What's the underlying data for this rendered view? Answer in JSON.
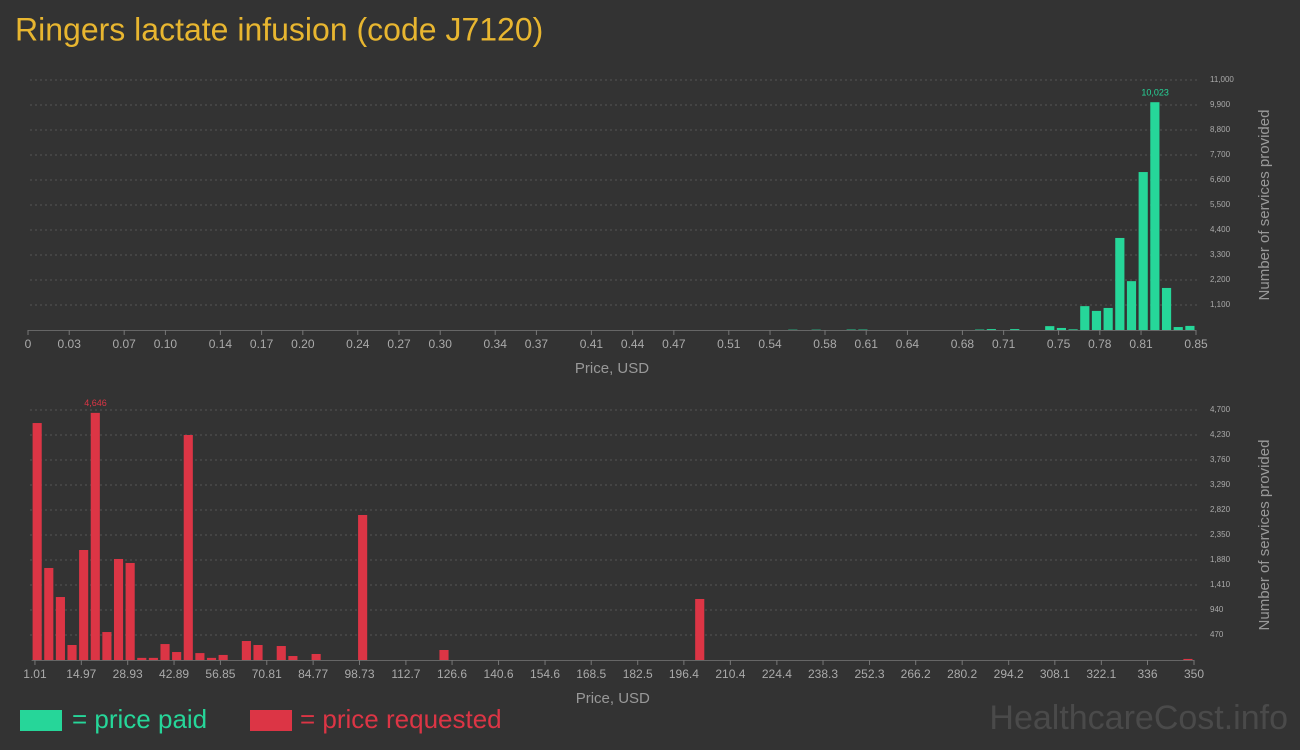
{
  "title": "Ringers lactate infusion (code J7120)",
  "watermark": "HealthcareCost.info",
  "chart_data": [
    {
      "type": "histogram",
      "name": "= price paid",
      "color": "#26d699",
      "bins": [
        0.5525,
        0.561,
        0.5695,
        0.578,
        0.5865,
        0.595,
        0.6035,
        0.612,
        0.6205,
        0.629,
        0.6375,
        0.646,
        0.6545,
        0.663,
        0.6715,
        0.68,
        0.6885,
        0.697,
        0.7055,
        0.714,
        0.7225,
        0.731,
        0.7395,
        0.748,
        0.7565,
        0.765,
        0.7735,
        0.782,
        0.7905,
        0.799,
        0.8075,
        0.816,
        0.8245,
        0.833,
        0.8415,
        0.85
      ],
      "values": [
        15,
        0,
        15,
        0,
        0,
        20,
        20,
        0,
        0,
        0,
        0,
        0,
        0,
        0,
        0,
        0,
        20,
        40,
        0,
        40,
        0,
        0,
        170,
        90,
        30,
        1050,
        840,
        970,
        4050,
        2150,
        6950,
        10023,
        1850,
        130,
        180
      ],
      "value_labels": [
        null,
        null,
        null,
        null,
        null,
        null,
        null,
        null,
        null,
        null,
        null,
        null,
        null,
        null,
        null,
        null,
        null,
        null,
        null,
        null,
        null,
        null,
        null,
        null,
        null,
        null,
        null,
        null,
        null,
        null,
        null,
        "10,023",
        null,
        null,
        null
      ],
      "xlim": [
        0,
        0.85
      ],
      "xticks": [
        0,
        0.03,
        0.07,
        {
          "value": 0.1,
          "label": "0.10"
        },
        0.14,
        0.17,
        {
          "value": 0.2,
          "label": "0.20"
        },
        0.24,
        0.27,
        {
          "value": 0.3,
          "label": "0.30"
        },
        0.34,
        0.37,
        0.41,
        0.44,
        0.47,
        0.51,
        0.54,
        0.58,
        0.61,
        0.64,
        0.68,
        0.71,
        0.75,
        0.78,
        0.81,
        0.85
      ],
      "ylim": [
        0,
        11000
      ],
      "yticks": [
        {
          "value": 1100,
          "label": "1,100"
        },
        {
          "value": 2200,
          "label": "2,200"
        },
        {
          "value": 3300,
          "label": "3,300"
        },
        {
          "value": 4400,
          "label": "4,400"
        },
        {
          "value": 5500,
          "label": "5,500"
        },
        {
          "value": 6600,
          "label": "6,600"
        },
        {
          "value": 7700,
          "label": "7,700"
        },
        {
          "value": 8800,
          "label": "8,800"
        },
        {
          "value": 9900,
          "label": "9,900"
        },
        {
          "value": 11000,
          "label": "11,000"
        }
      ],
      "xlabel": "Price, USD",
      "ylabel": "Number of services provided",
      "grid": true
    },
    {
      "type": "histogram",
      "name": "= price requested",
      "color": "#dc3545",
      "bins": [
        0,
        3.5,
        7,
        10.5,
        14,
        17.5,
        21,
        24.5,
        28,
        31.5,
        35,
        38.5,
        42,
        45.5,
        49,
        52.5,
        56,
        59.5,
        63,
        66.5,
        70,
        73.5,
        77,
        80.5,
        84,
        87.5,
        91,
        94.5,
        98,
        101.5,
        105,
        108.5,
        112,
        115.5,
        119,
        122.5,
        126,
        129.5,
        133,
        136.5,
        140,
        143.5,
        147,
        150.5,
        154,
        157.5,
        161,
        164.5,
        168,
        171.5,
        175,
        178.5,
        182,
        185.5,
        189,
        192.5,
        196,
        199.5,
        203,
        206.5,
        210,
        213.5,
        217,
        220.5,
        224,
        227.5,
        231,
        234.5,
        238,
        241.5,
        245,
        248.5,
        252,
        255.5,
        259,
        262.5,
        266,
        269.5,
        273,
        276.5,
        280,
        283.5,
        287,
        290.5,
        294,
        297.5,
        301,
        304.5,
        308,
        311.5,
        315,
        318.5,
        322,
        325.5,
        329,
        332.5,
        336,
        339.5,
        343,
        346.5,
        350
      ],
      "values": [
        4455,
        1730,
        1184,
        282,
        2068,
        4646,
        526,
        1899,
        1824,
        40,
        40,
        300,
        150,
        4230,
        130,
        40,
        95,
        0,
        357,
        282,
        0,
        263,
        75,
        0,
        113,
        0,
        0,
        0,
        2726,
        0,
        0,
        0,
        0,
        0,
        0,
        188,
        0,
        0,
        0,
        0,
        0,
        0,
        0,
        0,
        0,
        0,
        0,
        0,
        0,
        0,
        0,
        0,
        0,
        0,
        0,
        0,
        0,
        1147,
        0,
        0,
        0,
        0,
        0,
        0,
        0,
        0,
        0,
        0,
        0,
        0,
        0,
        0,
        0,
        0,
        0,
        0,
        0,
        0,
        0,
        0,
        0,
        0,
        0,
        0,
        0,
        0,
        0,
        0,
        0,
        0,
        0,
        0,
        0,
        0,
        0,
        0,
        0,
        0,
        0,
        20
      ],
      "value_labels": [
        null,
        null,
        null,
        null,
        null,
        "4,646",
        null,
        null,
        null,
        null,
        null,
        null,
        null,
        null,
        null,
        null,
        null,
        null,
        null,
        null,
        null,
        null,
        null,
        null,
        null,
        null,
        null,
        null,
        null,
        null,
        null,
        null,
        null,
        null,
        null,
        null,
        null,
        null,
        null,
        null,
        null,
        null,
        null,
        null,
        null,
        null,
        null,
        null,
        null,
        null,
        null,
        null,
        null,
        null,
        null,
        null,
        null,
        null,
        null,
        null,
        null,
        null,
        null,
        null,
        null,
        null,
        null,
        null,
        null,
        null,
        null,
        null,
        null,
        null,
        null,
        null,
        null,
        null,
        null,
        null,
        null,
        null,
        null,
        null,
        null,
        null,
        null,
        null,
        null,
        null,
        null,
        null,
        null,
        null,
        null,
        null,
        null,
        null,
        null,
        null
      ],
      "xlim": [
        0,
        350
      ],
      "xticks": [
        1.01,
        14.97,
        28.93,
        42.89,
        56.85,
        70.81,
        84.77,
        98.73,
        112.7,
        126.6,
        140.6,
        154.6,
        168.5,
        182.5,
        196.4,
        210.4,
        224.4,
        238.3,
        252.3,
        266.2,
        280.2,
        294.2,
        308.1,
        322.1,
        336,
        350
      ],
      "ylim": [
        0,
        4700
      ],
      "yticks": [
        470,
        940,
        {
          "value": 1410,
          "label": "1,410"
        },
        {
          "value": 1880,
          "label": "1,880"
        },
        {
          "value": 2350,
          "label": "2,350"
        },
        {
          "value": 2820,
          "label": "2,820"
        },
        {
          "value": 3290,
          "label": "3,290"
        },
        {
          "value": 3760,
          "label": "3,760"
        },
        {
          "value": 4230,
          "label": "4,230"
        },
        {
          "value": 4700,
          "label": "4,700"
        }
      ],
      "xlabel": "Price, USD",
      "ylabel": "Number of services provided",
      "grid": true
    }
  ]
}
